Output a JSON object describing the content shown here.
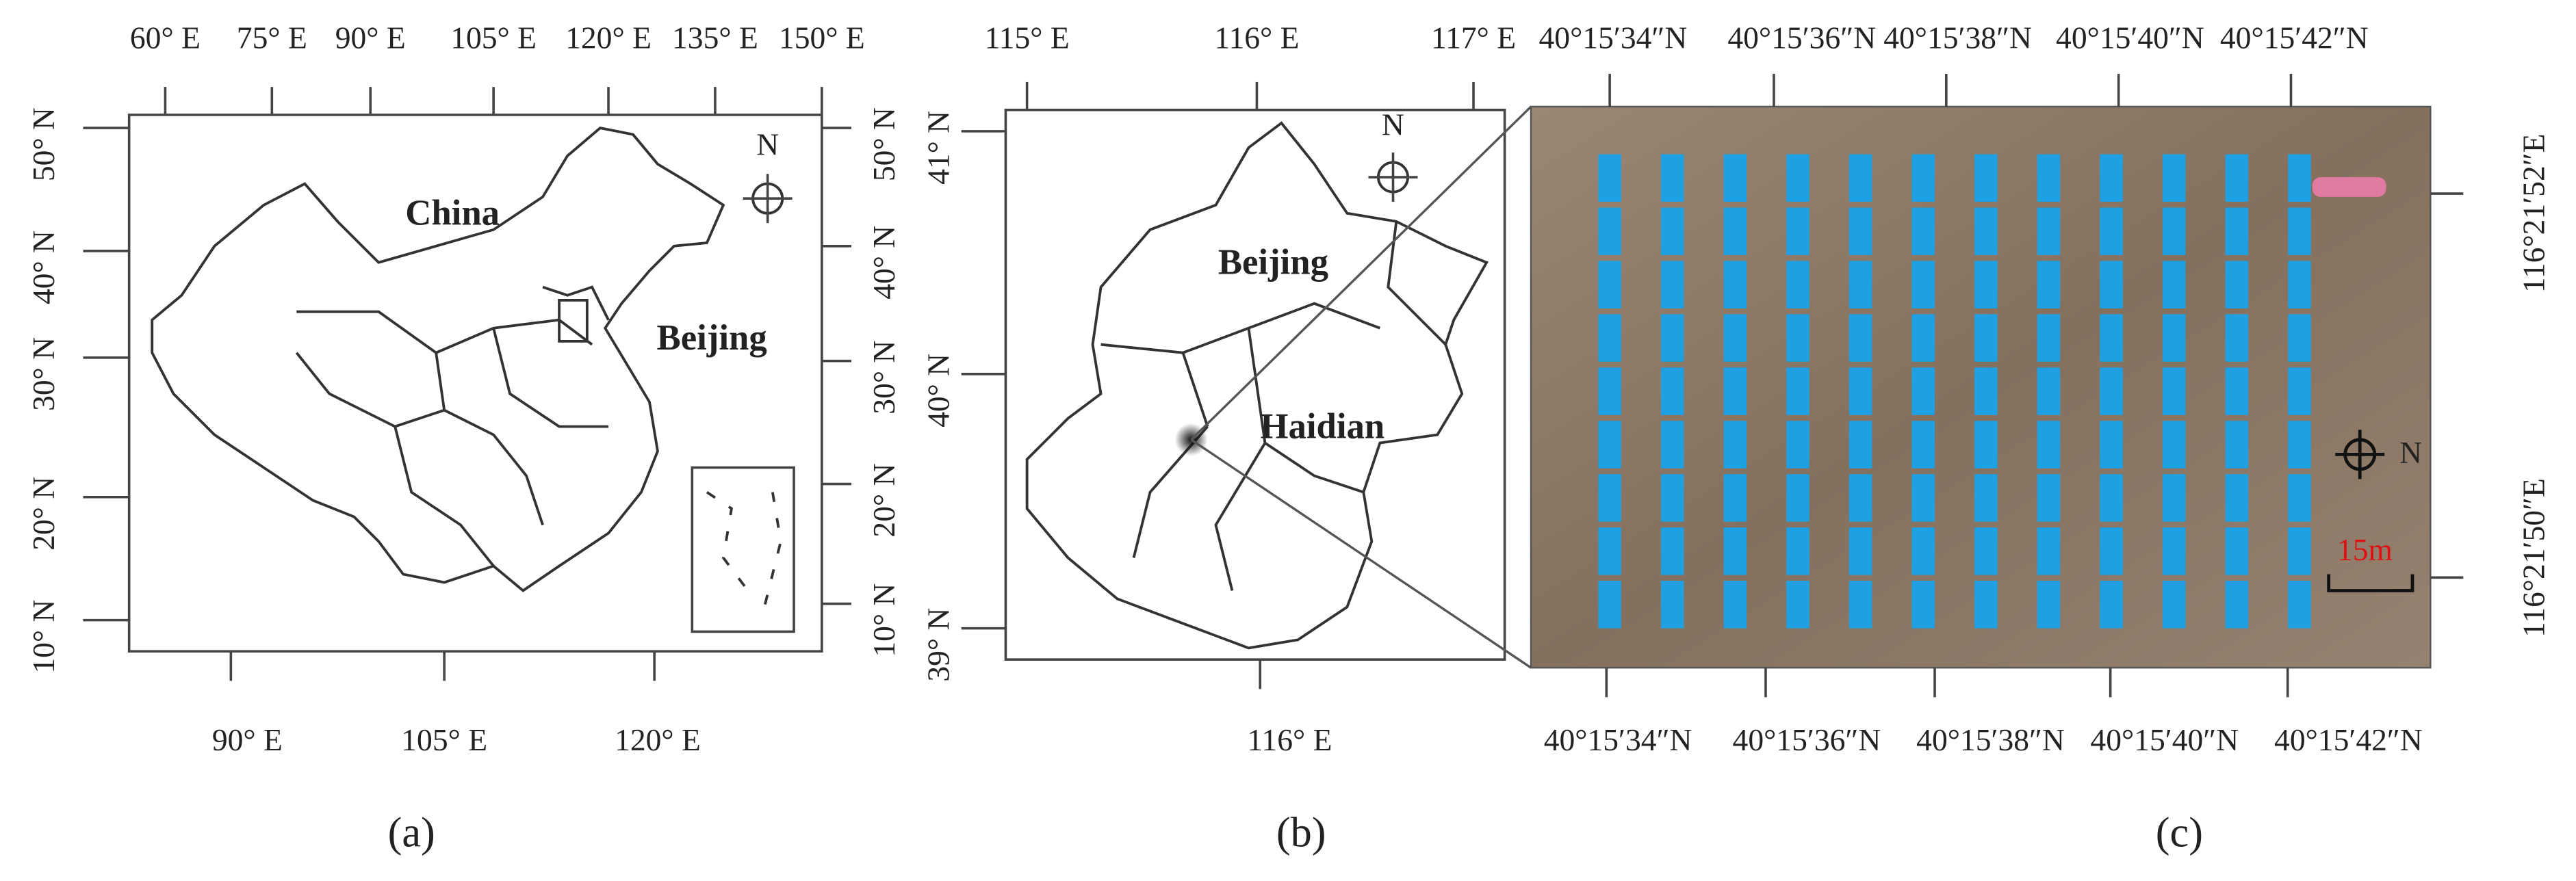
{
  "panels": [
    {
      "caption": "(a)",
      "top_labels": [
        "60° E",
        "75° E",
        "90° E",
        "105° E",
        "120° E",
        "135° E",
        "150° E"
      ],
      "left_labels": [
        "50° N",
        "40° N",
        "30° N",
        "20° N",
        "10° N"
      ],
      "right_labels": [
        "50° N",
        "40° N",
        "30° N",
        "20° N",
        "10° N"
      ],
      "bottom_labels": [
        "90° E",
        "105° E",
        "120° E"
      ],
      "map_labels": [
        "China",
        "Beijing"
      ],
      "compass": "N"
    },
    {
      "caption": "(b)",
      "top_labels": [
        "115° E",
        "116° E",
        "117° E"
      ],
      "left_labels": [
        "41° N",
        "40° N",
        "39° N"
      ],
      "bottom_labels": [
        "116° E"
      ],
      "map_labels": [
        "Beijing",
        "Haidian"
      ],
      "compass": "N"
    },
    {
      "caption": "(c)",
      "top_labels": [
        "40°15′34″N",
        "40°15′36″N",
        "40°15′38″N",
        "40°15′40″N",
        "40°15′42″N"
      ],
      "right_labels": [
        "116°21′52″E",
        "116°21′50″E"
      ],
      "bottom_labels": [
        "40°15′34″N",
        "40°15′36″N",
        "40°15′38″N",
        "40°15′40″N",
        "40°15′42″N"
      ],
      "scale_bar": "15m",
      "compass": "N"
    }
  ]
}
